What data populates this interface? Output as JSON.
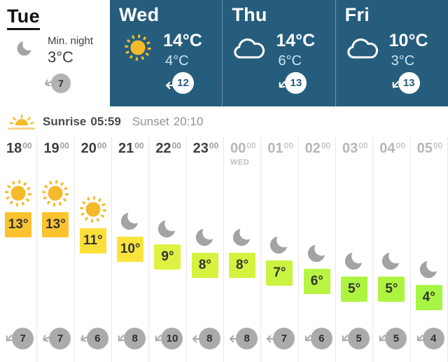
{
  "days": [
    {
      "name": "Tue",
      "selected": true,
      "icon": "moon",
      "min_label": "Min. night",
      "min_temp": "3°C",
      "wind_speed": "7",
      "wind_dir": "WSW"
    },
    {
      "name": "Wed",
      "selected": false,
      "icon": "sun",
      "max_temp": "14°C",
      "min_temp": "4°C",
      "wind_speed": "12",
      "wind_dir": "W"
    },
    {
      "name": "Thu",
      "selected": false,
      "icon": "cloud",
      "max_temp": "14°C",
      "min_temp": "6°C",
      "wind_speed": "13",
      "wind_dir": "SW"
    },
    {
      "name": "Fri",
      "selected": false,
      "icon": "cloud",
      "max_temp": "10°C",
      "min_temp": "3°C",
      "wind_speed": "13",
      "wind_dir": "SW"
    }
  ],
  "sun_times": {
    "sunrise_label": "Sunrise",
    "sunrise_time": "05:59",
    "sunset_label": "Sunset",
    "sunset_time": "20:10",
    "icon": "sunrise"
  },
  "hourly": {
    "columns": [
      {
        "hour": "18",
        "minute": "00",
        "day_label": "",
        "next_day": false,
        "icon": "sun",
        "temp": 13,
        "temp_label": "13°",
        "temp_color": "#fcc32f",
        "wind_speed": "7",
        "wind_dir": "SW"
      },
      {
        "hour": "19",
        "minute": "00",
        "day_label": "",
        "next_day": false,
        "icon": "sun",
        "temp": 13,
        "temp_label": "13°",
        "temp_color": "#fcc32f",
        "wind_speed": "7",
        "wind_dir": "WSW"
      },
      {
        "hour": "20",
        "minute": "00",
        "day_label": "",
        "next_day": false,
        "icon": "sun",
        "temp": 11,
        "temp_label": "11°",
        "temp_color": "#fbdf39",
        "wind_speed": "6",
        "wind_dir": "WSW"
      },
      {
        "hour": "21",
        "minute": "00",
        "day_label": "",
        "next_day": false,
        "icon": "moon",
        "temp": 10,
        "temp_label": "10°",
        "temp_color": "#fae43c",
        "wind_speed": "8",
        "wind_dir": "SW"
      },
      {
        "hour": "22",
        "minute": "00",
        "day_label": "",
        "next_day": false,
        "icon": "moon",
        "temp": 9,
        "temp_label": "9°",
        "temp_color": "#def243",
        "wind_speed": "10",
        "wind_dir": "SW"
      },
      {
        "hour": "23",
        "minute": "00",
        "day_label": "",
        "next_day": false,
        "icon": "moon",
        "temp": 8,
        "temp_label": "8°",
        "temp_color": "#d6f23e",
        "wind_speed": "8",
        "wind_dir": "W"
      },
      {
        "hour": "00",
        "minute": "00",
        "day_label": "WED",
        "next_day": true,
        "icon": "moon",
        "temp": 8,
        "temp_label": "8°",
        "temp_color": "#d6f23e",
        "wind_speed": "8",
        "wind_dir": "W"
      },
      {
        "hour": "01",
        "minute": "00",
        "day_label": "",
        "next_day": true,
        "icon": "moon",
        "temp": 7,
        "temp_label": "7°",
        "temp_color": "#c8f33e",
        "wind_speed": "7",
        "wind_dir": "W"
      },
      {
        "hour": "02",
        "minute": "00",
        "day_label": "",
        "next_day": true,
        "icon": "moon",
        "temp": 6,
        "temp_label": "6°",
        "temp_color": "#b9f442",
        "wind_speed": "6",
        "wind_dir": "SW"
      },
      {
        "hour": "03",
        "minute": "00",
        "day_label": "",
        "next_day": true,
        "icon": "moon",
        "temp": 5,
        "temp_label": "5°",
        "temp_color": "#adf441",
        "wind_speed": "5",
        "wind_dir": "SW"
      },
      {
        "hour": "04",
        "minute": "00",
        "day_label": "",
        "next_day": true,
        "icon": "moon",
        "temp": 5,
        "temp_label": "5°",
        "temp_color": "#adf441",
        "wind_speed": "5",
        "wind_dir": "SW"
      },
      {
        "hour": "05",
        "minute": "00",
        "day_label": "",
        "next_day": true,
        "icon": "moon",
        "temp": 4,
        "temp_label": "4°",
        "temp_color": "#a7f544",
        "wind_speed": "4",
        "wind_dir": "SW"
      }
    ]
  },
  "colors": {
    "accent_teal": "#265d7c",
    "sun_yellow": "#f4ba2b",
    "moon_grey": "#a3a3a3",
    "wind_grey": "#ababab",
    "min_temp_on_teal": "#cde4f0",
    "separator": "#e6e6e6"
  }
}
